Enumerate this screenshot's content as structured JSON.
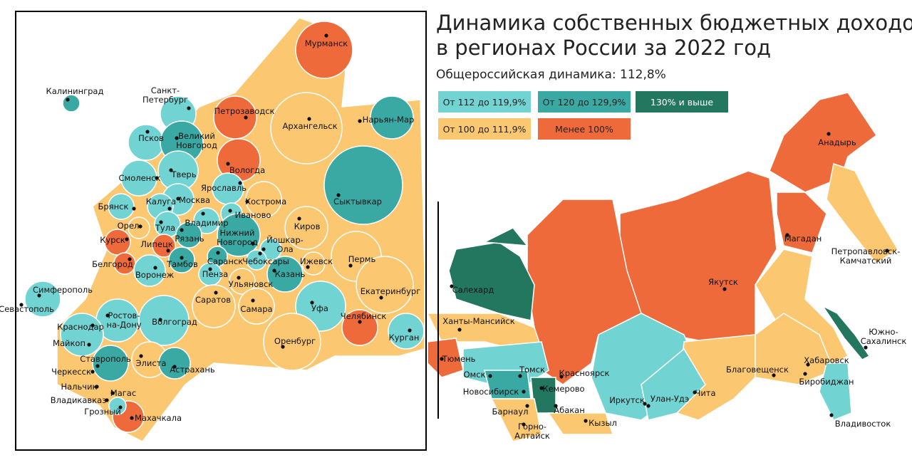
{
  "title": [
    "Динамика собственных бюджетных доходов",
    "в регионах России за 2022 год"
  ],
  "subtitle": "Общероссийская динамика: 112,8%",
  "legend": [
    {
      "label": "От 112 до 119,9%",
      "color": "#72d4d2"
    },
    {
      "label": "От 120 до 129,9%",
      "color": "#3aa9a3"
    },
    {
      "label": "130% и выше",
      "color": "#23775f"
    },
    {
      "label": "От 100 до 111,9%",
      "color": "#fbc871"
    },
    {
      "label": "Менее 100%",
      "color": "#ef6a3a"
    }
  ],
  "cities": [
    [
      "Мурманск"
    ],
    [
      "Калининград"
    ],
    [
      "Санкт-",
      "Петербург"
    ],
    [
      "Петрозаводск"
    ],
    [
      "Архангельск"
    ],
    [
      "Нарьян-Мар"
    ],
    [
      "Псков"
    ],
    [
      "Великий",
      "Новгород"
    ],
    [
      "Вологда"
    ],
    [
      "Тверь"
    ],
    [
      "Смоленск"
    ],
    [
      "Ярославль"
    ],
    [
      "Сыктывкар"
    ],
    [
      "Калуга"
    ],
    [
      "Москва"
    ],
    [
      "Кострома"
    ],
    [
      "Брянск"
    ],
    [
      "Иваново"
    ],
    [
      "Владимир"
    ],
    [
      "Тула"
    ],
    [
      "Орел"
    ],
    [
      "Киров"
    ],
    [
      "Рязань"
    ],
    [
      "Курск"
    ],
    [
      "Липецк"
    ],
    [
      "Нижний",
      "Новгород"
    ],
    [
      "Йошкар-",
      "Ола"
    ],
    [
      "Пермь"
    ],
    [
      "Саранск"
    ],
    [
      "Чебоксары"
    ],
    [
      "Белгород"
    ],
    [
      "Тамбов"
    ],
    [
      "Ижевск"
    ],
    [
      "Пенза"
    ],
    [
      "Казань"
    ],
    [
      "Воронеж"
    ],
    [
      "Ульяновск"
    ],
    [
      "Симферополь"
    ],
    [
      "Екатеринбург"
    ],
    [
      "Саратов"
    ],
    [
      "Севастополь"
    ],
    [
      "Самара"
    ],
    [
      "Уфа"
    ],
    [
      "Ростов-",
      "на-Дону"
    ],
    [
      "Волгоград"
    ],
    [
      "Челябинск"
    ],
    [
      "Краснодар"
    ],
    [
      "Курган"
    ],
    [
      "Майкоп"
    ],
    [
      "Оренбург"
    ],
    [
      "Ставрополь"
    ],
    [
      "Элиста"
    ],
    [
      "Черкесск"
    ],
    [
      "Астрахань"
    ],
    [
      "Нальчик"
    ],
    [
      "Магас"
    ],
    [
      "Владикавказ"
    ],
    [
      "Грозный"
    ],
    [
      "Махачкала"
    ],
    [
      "Анадырь"
    ],
    [
      "Петропавловск-",
      "Камчатский"
    ],
    [
      "Магадан"
    ],
    [
      "Салехард"
    ],
    [
      "Якутск"
    ],
    [
      "Ханты-Мансийск"
    ],
    [
      "Южно-",
      "Сахалинск"
    ],
    [
      "Тюмень"
    ],
    [
      "Хабаровск"
    ],
    [
      "Благовещенск"
    ],
    [
      "Томск"
    ],
    [
      "Красноярск"
    ],
    [
      "Омск"
    ],
    [
      "Биробиджан"
    ],
    [
      "Новосибирск"
    ],
    [
      "Кемерово"
    ],
    [
      "Иркутск"
    ],
    [
      "Улан-Удэ"
    ],
    [
      "Чита"
    ],
    [
      "Барнаул"
    ],
    [
      "Абакан"
    ],
    [
      "Кызыл"
    ],
    [
      "Владивосток"
    ],
    [
      "Горно-",
      "Алтайск"
    ]
  ]
}
